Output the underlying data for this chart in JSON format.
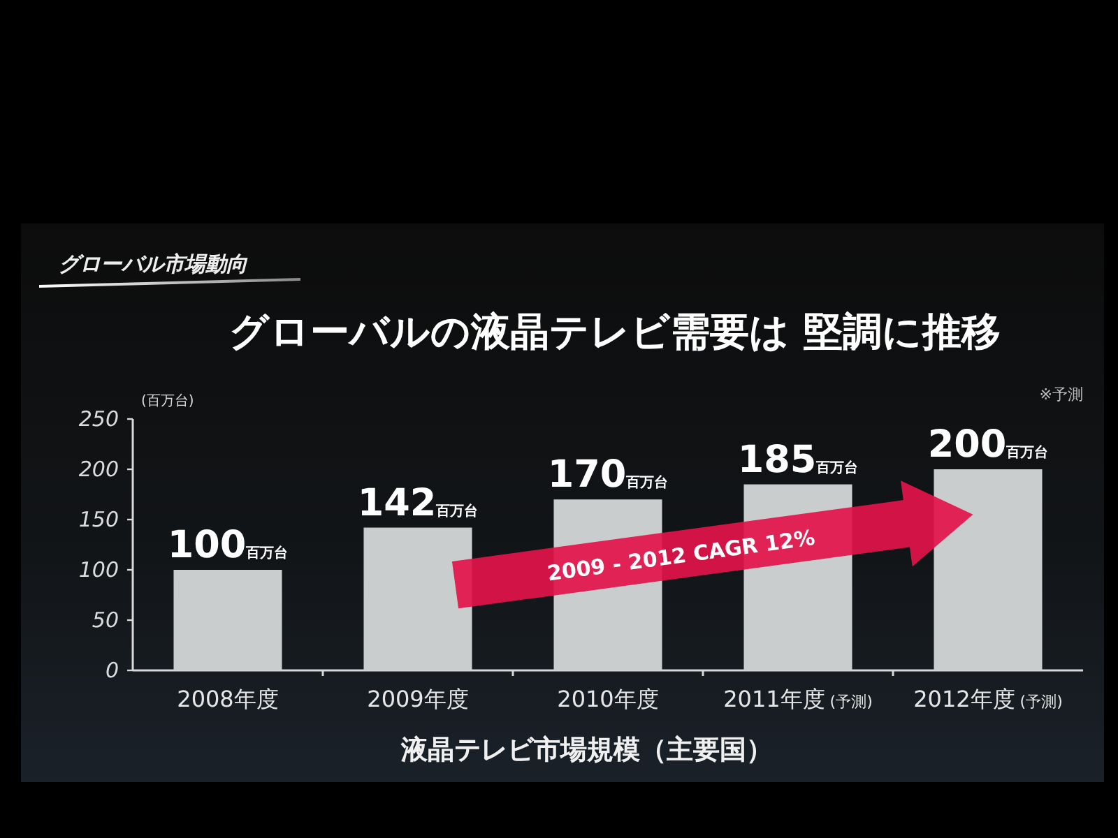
{
  "chart_data": {
    "type": "bar",
    "title": "グローバルの液晶テレビ需要は 堅調に推移",
    "xlabel": "液晶テレビ市場規模（主要国）",
    "ylabel": "(百万台)",
    "categories": [
      "2008年度",
      "2009年度",
      "2010年度",
      "2011年度 (予測)",
      "2012年度 (予測)"
    ],
    "values": [
      100,
      142,
      170,
      185,
      200
    ],
    "value_labels": [
      "100百万台",
      "142百万台",
      "170百万台",
      "185百万台",
      "200百万台"
    ],
    "color": "#c9cdcd",
    "ylim": [
      0,
      250
    ],
    "yticks": [
      0,
      50,
      100,
      150,
      200,
      250
    ],
    "annotations": [
      "グローバル市場動向",
      "2009 - 2012 CAGR 12%",
      "※予測"
    ]
  }
}
